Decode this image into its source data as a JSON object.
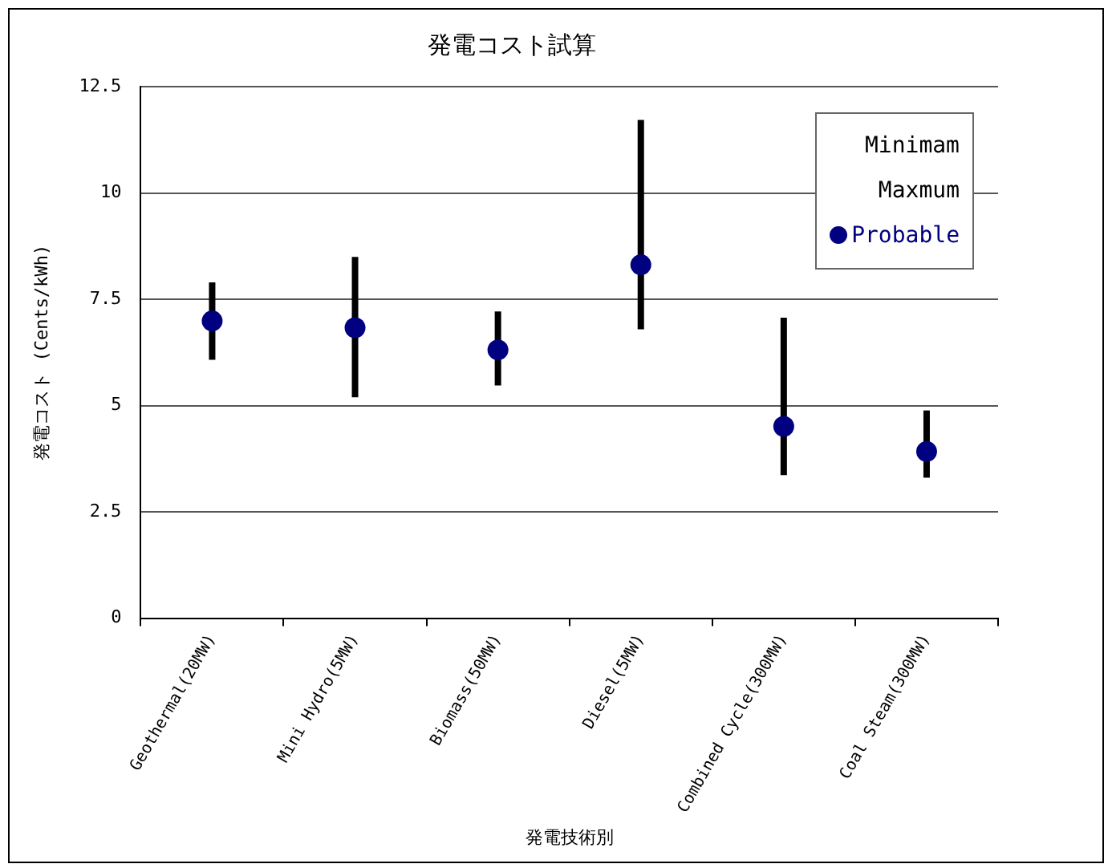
{
  "chart_data": {
    "type": "scatter",
    "title": "発電コスト試算",
    "xlabel": "発電技術別",
    "ylabel": "発電コスト (Cents/kWh)",
    "categories": [
      "Geothermal(20MW)",
      "Mini Hydro(5MW)",
      "Biomass(50MW)",
      "Diesel(5MW)",
      "Combined Cycle(300MW)",
      "Coal Steam(300MW)"
    ],
    "series": [
      {
        "name": "Probable",
        "type": "scatter",
        "marker": "circle",
        "color": "#000080",
        "values": [
          6.99,
          6.83,
          6.31,
          8.31,
          4.51,
          3.92
        ],
        "errors": [
          [
            6.15,
            7.82
          ],
          [
            5.27,
            8.42
          ],
          [
            5.55,
            7.14
          ],
          [
            6.87,
            11.64
          ],
          [
            3.44,
            6.99
          ],
          [
            3.38,
            4.81
          ]
        ]
      }
    ],
    "annotations": [
      "Minimam",
      "Maxmum"
    ],
    "ylim": [
      0,
      12.5
    ],
    "yticks": [
      0,
      2.5,
      5,
      7.5,
      10,
      12.5
    ],
    "grid": "y",
    "legend": "top right"
  }
}
